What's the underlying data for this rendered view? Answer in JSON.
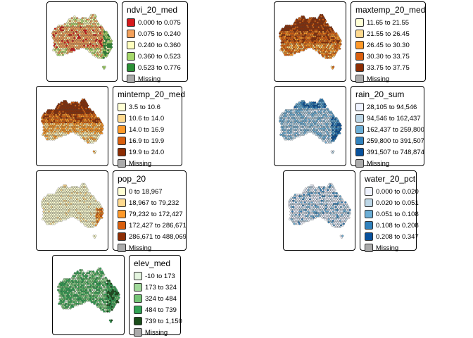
{
  "panels": [
    {
      "id": "ndvi",
      "title": "ndvi_20_med",
      "fill_pattern": "ndvi",
      "items": [
        {
          "label": "0.000 to 0.075",
          "color": "#d7191c"
        },
        {
          "label": "0.075 to 0.240",
          "color": "#f4a15b"
        },
        {
          "label": "0.240 to 0.360",
          "color": "#ffffbf"
        },
        {
          "label": "0.360 to 0.523",
          "color": "#a6d96a"
        },
        {
          "label": "0.523 to 0.776",
          "color": "#2b9136"
        },
        {
          "label": "Missing",
          "color": "#aaaaaa"
        }
      ]
    },
    {
      "id": "maxtemp",
      "title": "maxtemp_20_med",
      "fill_pattern": "maxtemp",
      "items": [
        {
          "label": "11.65 to 21.55",
          "color": "#ffffd4"
        },
        {
          "label": "21.55 to 26.45",
          "color": "#fed98e"
        },
        {
          "label": "26.45 to 30.30",
          "color": "#fe9929"
        },
        {
          "label": "30.30 to 33.75",
          "color": "#d95f0e"
        },
        {
          "label": "33.75 to 37.75",
          "color": "#8c2d04"
        },
        {
          "label": "Missing",
          "color": "#aaaaaa"
        }
      ]
    },
    {
      "id": "mintemp",
      "title": "mintemp_20_med",
      "fill_pattern": "mintemp",
      "items": [
        {
          "label": "3.5 to 10.6",
          "color": "#ffffd4"
        },
        {
          "label": "10.6 to 14.0",
          "color": "#fed98e"
        },
        {
          "label": "14.0 to 16.9",
          "color": "#fe9929"
        },
        {
          "label": "16.9 to 19.9",
          "color": "#d95f0e"
        },
        {
          "label": "19.9 to 24.0",
          "color": "#8c2d04"
        },
        {
          "label": "Missing",
          "color": "#aaaaaa"
        }
      ]
    },
    {
      "id": "rain",
      "title": "rain_20_sum",
      "fill_pattern": "rain",
      "items": [
        {
          "label": "28,105 to 94,546",
          "color": "#eff3ff"
        },
        {
          "label": "94,546 to 162,437",
          "color": "#bdd7e7"
        },
        {
          "label": "162,437 to 259,800",
          "color": "#6baed6"
        },
        {
          "label": "259,800 to 391,507",
          "color": "#3182bd"
        },
        {
          "label": "391,507 to 748,874",
          "color": "#08519c"
        },
        {
          "label": "Missing",
          "color": "#aaaaaa"
        }
      ]
    },
    {
      "id": "pop",
      "title": "pop_20",
      "fill_pattern": "pop",
      "items": [
        {
          "label": "0 to 18,967",
          "color": "#ffffd4"
        },
        {
          "label": "18,967 to 79,232",
          "color": "#fed98e"
        },
        {
          "label": "79,232 to 172,427",
          "color": "#fe9929"
        },
        {
          "label": "172,427 to 286,671",
          "color": "#d95f0e"
        },
        {
          "label": "286,671 to 488,069",
          "color": "#8c2d04"
        },
        {
          "label": "Missing",
          "color": "#aaaaaa"
        }
      ]
    },
    {
      "id": "water",
      "title": "water_20_pct",
      "fill_pattern": "water",
      "items": [
        {
          "label": "0.000 to 0.020",
          "color": "#eff3ff"
        },
        {
          "label": "0.020 to 0.051",
          "color": "#bdd7e7"
        },
        {
          "label": "0.051 to 0.108",
          "color": "#6baed6"
        },
        {
          "label": "0.108 to 0.208",
          "color": "#3182bd"
        },
        {
          "label": "0.208 to 0.347",
          "color": "#08519c"
        },
        {
          "label": "Missing",
          "color": "#aaaaaa"
        }
      ]
    },
    {
      "id": "elev",
      "title": "elev_med",
      "fill_pattern": "elev",
      "items": [
        {
          "label": "-10 to 173",
          "color": "#e5f5e0"
        },
        {
          "label": "173 to 324",
          "color": "#a1d99b"
        },
        {
          "label": "324 to 484",
          "color": "#74c476"
        },
        {
          "label": "484 to 739",
          "color": "#31a354"
        },
        {
          "label": "739 to 1,150",
          "color": "#1a4d1a"
        },
        {
          "label": "Missing",
          "color": "#aaaaaa"
        }
      ]
    }
  ]
}
